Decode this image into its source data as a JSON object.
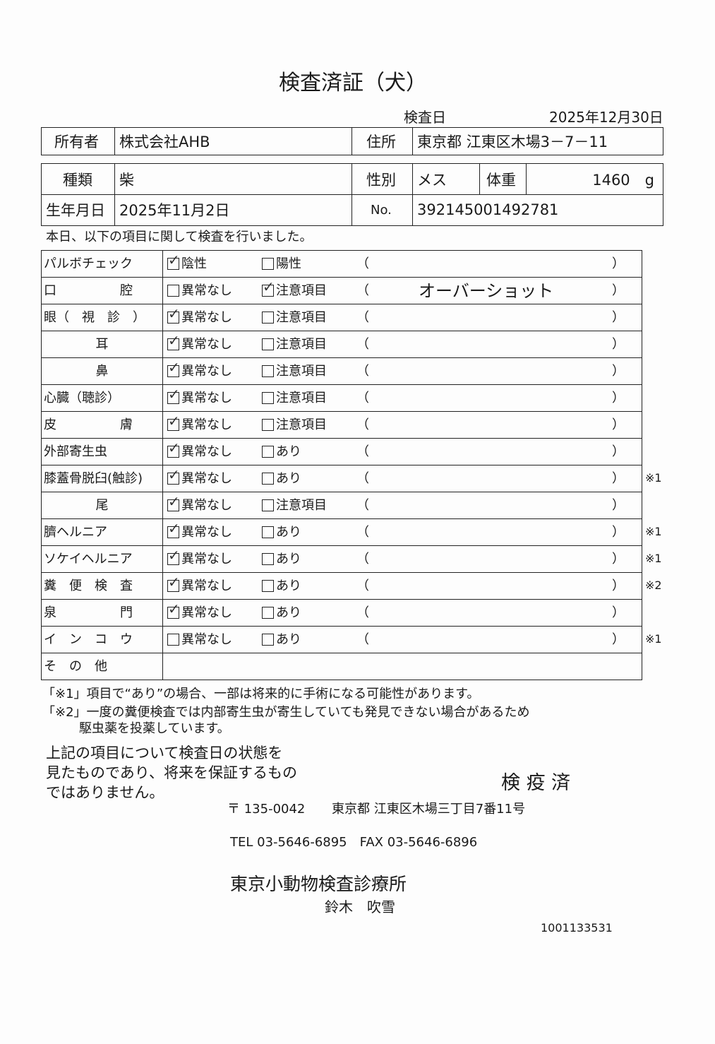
{
  "title": "検査済証（犬）",
  "inspection_date_label": "検査日",
  "inspection_date": "2025年12月30日",
  "owner_label": "所有者",
  "owner": "株式会社AHB",
  "address_label": "住所",
  "address": "東京都 江東区木場3－7－11",
  "breed_label": "種類",
  "breed": "柴",
  "sex_label": "性別",
  "sex": "メス",
  "weight_label": "体重",
  "weight": "1460　g",
  "birth_label": "生年月日",
  "birth": "2025年11月2日",
  "no_label": "No.",
  "no": "392145001492781",
  "intro": "本日、以下の項目に関して検査を行いました。",
  "items": [
    {
      "label": "パルボチェック",
      "opt1": "陰性",
      "opt2": "陽性",
      "checked": 1,
      "note": "",
      "mark": ""
    },
    {
      "label": "口　　　　　腔",
      "opt1": "異常なし",
      "opt2": "注意項目",
      "checked": 2,
      "note": "オーバーショット",
      "mark": ""
    },
    {
      "label": "眼（　視　診　）",
      "opt1": "異常なし",
      "opt2": "注意項目",
      "checked": 1,
      "note": "",
      "mark": ""
    },
    {
      "label": "耳",
      "opt1": "異常なし",
      "opt2": "注意項目",
      "checked": 1,
      "note": "",
      "mark": ""
    },
    {
      "label": "鼻",
      "opt1": "異常なし",
      "opt2": "注意項目",
      "checked": 1,
      "note": "",
      "mark": ""
    },
    {
      "label": "心臓（聴診）",
      "opt1": "異常なし",
      "opt2": "注意項目",
      "checked": 1,
      "note": "",
      "mark": ""
    },
    {
      "label": "皮　　　　　膚",
      "opt1": "異常なし",
      "opt2": "注意項目",
      "checked": 1,
      "note": "",
      "mark": ""
    },
    {
      "label": "外部寄生虫",
      "opt1": "異常なし",
      "opt2": "あり",
      "checked": 1,
      "note": "",
      "mark": ""
    },
    {
      "label": "膝蓋骨脱臼(触診)",
      "opt1": "異常なし",
      "opt2": "あり",
      "checked": 1,
      "note": "",
      "mark": "※1"
    },
    {
      "label": "尾",
      "opt1": "異常なし",
      "opt2": "注意項目",
      "checked": 1,
      "note": "",
      "mark": ""
    },
    {
      "label": "臍ヘルニア",
      "opt1": "異常なし",
      "opt2": "あり",
      "checked": 1,
      "note": "",
      "mark": "※1"
    },
    {
      "label": "ソケイヘルニア",
      "opt1": "異常なし",
      "opt2": "あり",
      "checked": 1,
      "note": "",
      "mark": "※1"
    },
    {
      "label": "糞　便　検　査",
      "opt1": "異常なし",
      "opt2": "あり",
      "checked": 1,
      "note": "",
      "mark": "※2"
    },
    {
      "label": "泉　　　　　門",
      "opt1": "異常なし",
      "opt2": "あり",
      "checked": 1,
      "note": "",
      "mark": ""
    },
    {
      "label": "イ　ン　コ　ウ",
      "opt1": "異常なし",
      "opt2": "あり",
      "checked": 0,
      "note": "",
      "mark": "※1"
    }
  ],
  "other_label": "そ　の　他",
  "paren_open": "（",
  "paren_close": "）",
  "footnote1": "「※1」項目で“あり”の場合、一部は将来的に手術になる可能性があります。",
  "footnote2a": "「※2」一度の糞便検査では内部寄生虫が寄生していても発見できない場合があるため",
  "footnote2b": "駆虫薬を投薬しています。",
  "disclaimer": [
    "上記の項目について検査日の状態を",
    "見たものであり、将来を保証するもの",
    "ではありません。"
  ],
  "stamp": "検 疫 済",
  "postal": "〒 135-0042",
  "clinic_address": "東京都 江東区木場三丁目7番11号",
  "tel": "TEL 03-5646-6895　FAX 03-5646-6896",
  "clinic": "東京小動物検査診療所",
  "vet": "鈴木　吹雪",
  "serial": "1001133531"
}
